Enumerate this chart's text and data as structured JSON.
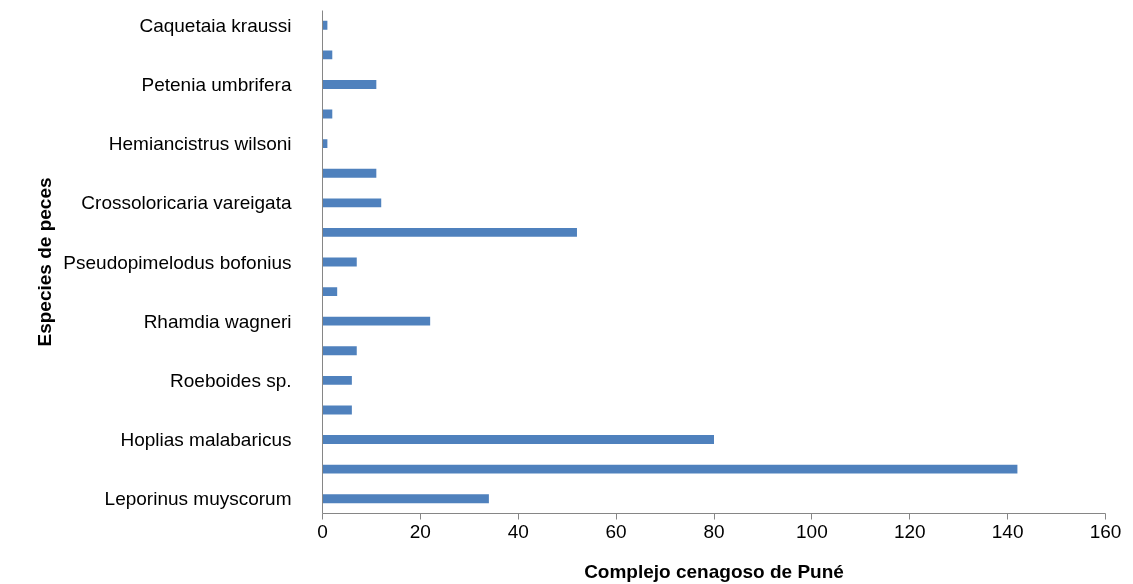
{
  "chart_data": {
    "type": "bar",
    "orientation": "horizontal",
    "xlabel": "Complejo cenagoso de Puné",
    "ylabel": "Especies de peces",
    "categories": [
      "Caquetaia kraussi",
      null,
      "Petenia umbrifera",
      null,
      "Hemiancistrus wilsoni",
      null,
      "Crossoloricaria vareigata",
      null,
      "Pseudopimelodus bofonius",
      null,
      "Rhamdia wagneri",
      null,
      "Roeboides sp.",
      null,
      "Hoplias malabaricus",
      null,
      "Leporinus muyscorum"
    ],
    "values": [
      1,
      2,
      11,
      2,
      1,
      11,
      12,
      52,
      7,
      3,
      22,
      7,
      6,
      6,
      80,
      142,
      34
    ],
    "color": "#4f81bd",
    "xlim": [
      0,
      160
    ],
    "xticks": [
      0,
      20,
      40,
      60,
      80,
      100,
      120,
      140,
      160
    ],
    "grid": false
  }
}
